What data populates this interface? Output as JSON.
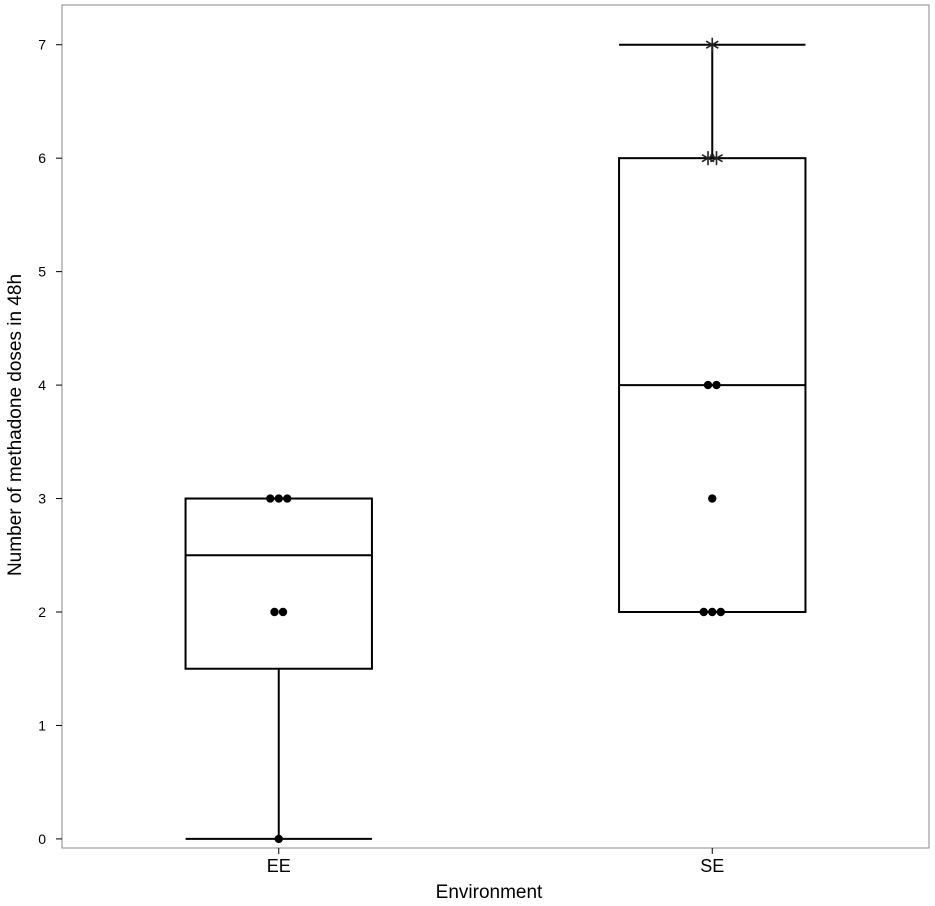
{
  "chart_data": {
    "type": "boxplot",
    "xlabel": "Environment",
    "ylabel": "Number of methadone doses in 48h",
    "ylim": [
      -0.08,
      7.35
    ],
    "yticks": [
      0,
      1,
      2,
      3,
      4,
      5,
      6,
      7
    ],
    "grid": false,
    "categories": [
      "EE",
      "SE"
    ],
    "boxes": [
      {
        "category": "EE",
        "whisker_low": 0,
        "q1": 1.5,
        "median": 2.5,
        "q3": 3,
        "whisker_high": 3,
        "points": [
          {
            "y": 3,
            "count": 3,
            "marker": "dot"
          },
          {
            "y": 2,
            "count": 2,
            "marker": "dot"
          },
          {
            "y": 0,
            "count": 1,
            "marker": "dot"
          }
        ]
      },
      {
        "category": "SE",
        "whisker_low": 2,
        "q1": 2,
        "median": 4,
        "q3": 6,
        "whisker_high": 7,
        "points": [
          {
            "y": 7,
            "count": 1,
            "marker": "star"
          },
          {
            "y": 6,
            "count": 2,
            "marker": "star"
          },
          {
            "y": 4,
            "count": 2,
            "marker": "dot"
          },
          {
            "y": 3,
            "count": 1,
            "marker": "dot"
          },
          {
            "y": 2,
            "count": 3,
            "marker": "dot"
          }
        ]
      }
    ]
  }
}
